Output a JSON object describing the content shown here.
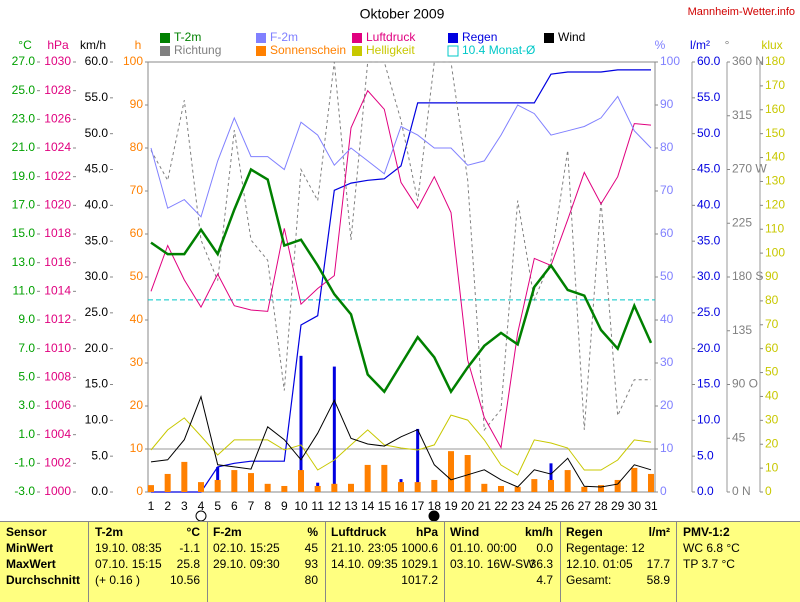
{
  "source": "Mannheim-Wetter.info",
  "chart_data": {
    "type": "weather-combo",
    "title": "Oktober 2009",
    "categories": [
      1,
      2,
      3,
      4,
      5,
      6,
      7,
      8,
      9,
      10,
      11,
      12,
      13,
      14,
      15,
      16,
      17,
      18,
      19,
      20,
      21,
      22,
      23,
      24,
      25,
      26,
      27,
      28,
      29,
      30,
      31
    ],
    "axes": [
      {
        "label": "°C",
        "color": "#00a000",
        "lim": [
          -3,
          27
        ],
        "ticks": [
          {
            "value": -3,
            "label": "-3.0"
          },
          {
            "value": -1,
            "label": "-1.0"
          },
          {
            "value": 1,
            "label": "1.0"
          },
          {
            "value": 3,
            "label": "3.0"
          },
          {
            "value": 5,
            "label": "5.0"
          },
          {
            "value": 7,
            "label": "7.0"
          },
          {
            "value": 9,
            "label": "9.0"
          },
          {
            "value": 11,
            "label": "11.0"
          },
          {
            "value": 13,
            "label": "13.0"
          },
          {
            "value": 15,
            "label": "15.0"
          },
          {
            "value": 17,
            "label": "17.0"
          },
          {
            "value": 19,
            "label": "19.0"
          },
          {
            "value": 21,
            "label": "21.0"
          },
          {
            "value": 23,
            "label": "23.0"
          },
          {
            "value": 25,
            "label": "25.0"
          },
          {
            "value": 27,
            "label": "27.0"
          }
        ]
      },
      {
        "label": "hPa",
        "color": "#e0007f",
        "lim": [
          1000,
          1030
        ],
        "ticks": [
          1000,
          1002,
          1004,
          1006,
          1008,
          1010,
          1012,
          1014,
          1016,
          1018,
          1020,
          1022,
          1024,
          1026,
          1028,
          1030
        ]
      },
      {
        "label": "km/h",
        "color": "#000000",
        "lim": [
          0,
          60
        ],
        "ticks": [
          {
            "value": 0,
            "label": "0.0"
          },
          {
            "value": 5,
            "label": "5.0"
          },
          {
            "value": 10,
            "label": "10.0"
          },
          {
            "value": 15,
            "label": "15.0"
          },
          {
            "value": 20,
            "label": "20.0"
          },
          {
            "value": 25,
            "label": "25.0"
          },
          {
            "value": 30,
            "label": "30.0"
          },
          {
            "value": 35,
            "label": "35.0"
          },
          {
            "value": 40,
            "label": "40.0"
          },
          {
            "value": 45,
            "label": "45.0"
          },
          {
            "value": 50,
            "label": "50.0"
          },
          {
            "value": 55,
            "label": "55.0"
          },
          {
            "value": 60,
            "label": "60.0"
          }
        ]
      },
      {
        "label": "h",
        "color": "#ff8000",
        "lim": [
          0,
          100
        ],
        "ticks": [
          0,
          10,
          20,
          30,
          40,
          50,
          60,
          70,
          80,
          90,
          100
        ]
      },
      {
        "label": "%",
        "color": "#8080ff",
        "lim": [
          0,
          100
        ],
        "ticks": [
          0,
          10,
          20,
          30,
          40,
          50,
          60,
          70,
          80,
          90,
          100
        ]
      },
      {
        "label": "l/m²",
        "color": "#0000e0",
        "lim": [
          0,
          60
        ],
        "ticks": [
          {
            "value": 0,
            "label": "0.0"
          },
          {
            "value": 5,
            "label": "5.0"
          },
          {
            "value": 10,
            "label": "10.0"
          },
          {
            "value": 15,
            "label": "15.0"
          },
          {
            "value": 20,
            "label": "20.0"
          },
          {
            "value": 25,
            "label": "25.0"
          },
          {
            "value": 30,
            "label": "30.0"
          },
          {
            "value": 35,
            "label": "35.0"
          },
          {
            "value": 40,
            "label": "40.0"
          },
          {
            "value": 45,
            "label": "45.0"
          },
          {
            "value": 50,
            "label": "50.0"
          },
          {
            "value": 55,
            "label": "55.0"
          },
          {
            "value": 60,
            "label": "60.0"
          }
        ]
      },
      {
        "label": "°",
        "color": "#808080",
        "lim": [
          0,
          360
        ],
        "ticks": [
          {
            "value": 0,
            "label": "0 N"
          },
          45,
          {
            "value": 90,
            "label": "90 O"
          },
          135,
          {
            "value": 180,
            "label": "180 S"
          },
          225,
          {
            "value": 270,
            "label": "270 W"
          },
          315,
          {
            "value": 360,
            "label": "360 N"
          }
        ]
      },
      {
        "label": "klux",
        "color": "#c8c800",
        "lim": [
          0,
          180
        ],
        "ticks": [
          0,
          10,
          20,
          30,
          40,
          50,
          60,
          70,
          80,
          90,
          100,
          110,
          120,
          130,
          140,
          150,
          160,
          170,
          180
        ]
      }
    ],
    "series": [
      {
        "name": "T-2m",
        "color": "#008000",
        "axis": 0,
        "style": "bold-line",
        "values": [
          14.4,
          13.6,
          13.6,
          15.3,
          13.6,
          16.7,
          19.5,
          18.8,
          14.2,
          14.6,
          12.8,
          10.8,
          9.4,
          5.2,
          4.0,
          5.9,
          7.8,
          6.4,
          4.0,
          5.7,
          7.2,
          8.1,
          7.3,
          11.3,
          12.8,
          11.1,
          10.7,
          8.3,
          7.0,
          10.0,
          7.4
        ]
      },
      {
        "name": "F-2m",
        "color": "#8080ff",
        "axis": 4,
        "style": "line",
        "values": [
          80,
          66,
          68,
          64,
          77,
          87,
          78,
          78,
          75,
          86,
          83,
          76,
          80,
          77,
          74,
          85,
          83,
          80,
          80,
          76,
          77,
          83,
          90,
          88,
          83,
          84,
          85,
          87,
          92,
          84,
          80
        ]
      },
      {
        "name": "Luftdruck",
        "color": "#e0007f",
        "axis": 1,
        "style": "line",
        "values": [
          1014.0,
          1017.2,
          1014.8,
          1012.9,
          1015.2,
          1013.0,
          1012.7,
          1012.6,
          1018.4,
          1013.1,
          1014.2,
          1015.1,
          1025.4,
          1028.0,
          1026.7,
          1021.6,
          1019.8,
          1022.0,
          1019.5,
          1009.2,
          1005.2,
          1003.1,
          1011.1,
          1016.3,
          1015.8,
          1019.0,
          1022.3,
          1020.1,
          1022.0,
          1025.7,
          1025.6
        ]
      },
      {
        "name": "Regen",
        "color": "#0000e0",
        "axis": 5,
        "style": "bar-cumulative",
        "values": [
          0,
          0,
          0,
          0,
          3.5,
          0.5,
          0.3,
          0,
          0,
          19.0,
          1.3,
          17.5,
          1.0,
          0.4,
          0.2,
          1.8,
          8.8,
          0,
          0,
          0,
          0,
          0,
          0,
          0,
          4.0,
          0.3,
          0,
          0,
          0.3,
          0,
          0
        ]
      },
      {
        "name": "Wind",
        "color": "#000000",
        "axis": 2,
        "style": "line",
        "values": [
          4.2,
          4.5,
          7.3,
          13.3,
          3.8,
          3.5,
          3.2,
          9.1,
          7.3,
          4.5,
          8.2,
          12.8,
          7.5,
          6.7,
          6.4,
          7.7,
          8.7,
          3.8,
          1.7,
          2.4,
          3.1,
          1.7,
          0.7,
          3.1,
          2.5,
          4.7,
          0.8,
          0.7,
          1.1,
          3.8,
          3.1
        ]
      },
      {
        "name": "Richtung",
        "color": "#808080",
        "axis": 6,
        "style": "dashed",
        "values": [
          286,
          261,
          328,
          211,
          177,
          303,
          211,
          194,
          85,
          270,
          244,
          360,
          211,
          360,
          360,
          311,
          244,
          360,
          360,
          261,
          52,
          69,
          244,
          161,
          194,
          286,
          52,
          244,
          64,
          94,
          94
        ]
      },
      {
        "name": "Sonnenschein",
        "color": "#ff8000",
        "axis": 3,
        "style": "bar",
        "values": [
          1.6,
          4.2,
          7.0,
          2.3,
          2.8,
          5.1,
          4.4,
          1.9,
          1.4,
          5.1,
          1.4,
          1.9,
          1.9,
          6.3,
          6.3,
          2.3,
          2.3,
          2.8,
          9.5,
          8.6,
          1.9,
          1.4,
          1.2,
          3.0,
          2.8,
          5.1,
          1.2,
          1.6,
          2.8,
          5.6,
          4.2
        ]
      },
      {
        "name": "Helligkeit",
        "color": "#c8c800",
        "axis": 7,
        "style": "line",
        "values": [
          17.6,
          26,
          31,
          23.4,
          15.5,
          21.8,
          21.8,
          21.8,
          17.6,
          19.7,
          9.2,
          13.4,
          19.7,
          26,
          19.7,
          18.4,
          17.6,
          19.7,
          32.2,
          30.1,
          21.8,
          11.3,
          7.1,
          21.8,
          20.5,
          18.4,
          9.2,
          9.2,
          13.4,
          21.8,
          20.9
        ]
      }
    ],
    "mean": {
      "value": 10.4,
      "label": "10.4 Monat-Ø",
      "color": "#00c8c8",
      "axis": 0
    }
  },
  "table": {
    "header": [
      "Sensor",
      "T-2m",
      "°C",
      "F-2m",
      "%",
      "Luftdruck",
      "hPa",
      "Wind",
      "km/h",
      "Regen",
      "l/m²",
      "PMV-1:2"
    ],
    "rows": [
      [
        "MinWert",
        "19.10. 08:35",
        "-1.1",
        "02.10. 15:25",
        "45",
        "21.10. 23:05",
        "1000.6",
        "01.10. 00:00",
        "0.0",
        "Regentage: 12",
        null,
        "WC 6.8 °C"
      ],
      [
        "MaxWert",
        "07.10. 15:15",
        "25.8",
        "29.10. 09:30",
        "93",
        "14.10. 09:35",
        "1029.1",
        "03.10. 16W-SW",
        "36.3",
        "12.10. 01:05",
        "17.7",
        "TP 3.7 °C"
      ],
      [
        "Durchschnitt",
        "(+ 0.16 )",
        "10.56",
        null,
        "80",
        null,
        "1017.2",
        null,
        "4.7",
        "Gesamt:",
        "58.9",
        null
      ]
    ]
  }
}
